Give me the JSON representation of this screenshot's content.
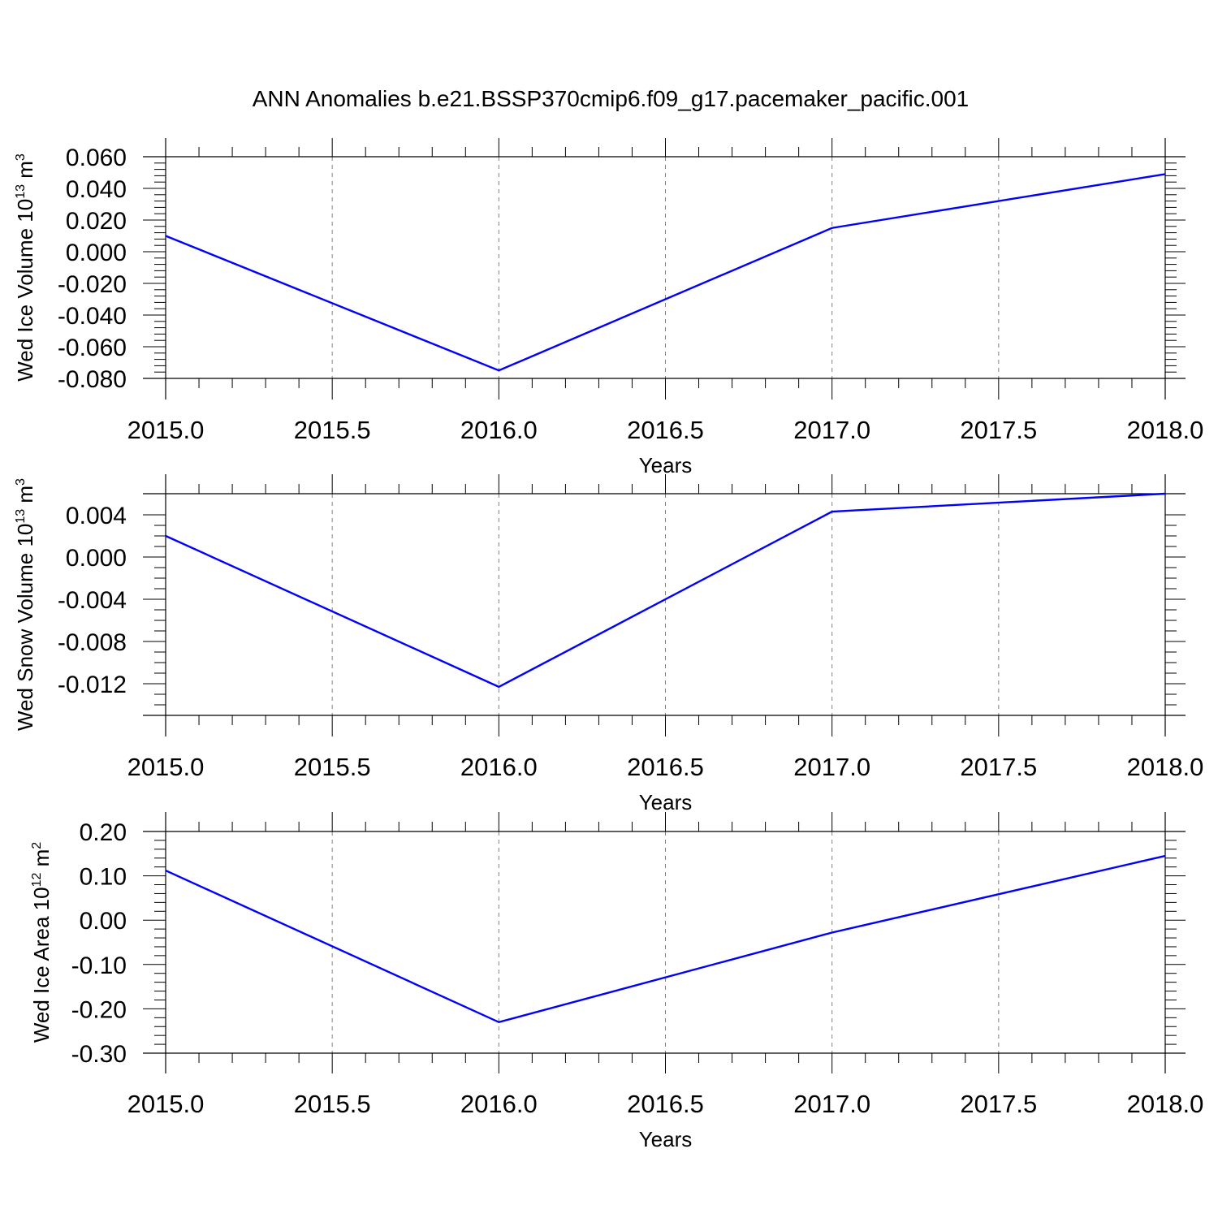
{
  "figure_title": "ANN Anomalies b.e21.BSSP370cmip6.f09_g17.pacemaker_pacific.001",
  "colors": {
    "series": "#0000ff",
    "grid": "#808080",
    "axes": "#000000"
  },
  "chart_data": [
    {
      "type": "line",
      "title": "ANN Anomalies b.e21.BSSP370cmip6.f09_g17.pacemaker_pacific.001",
      "xlabel": "Years",
      "ylabel": {
        "text": "Wed Ice Volume 10",
        "exp": "13",
        "unit": " m",
        "unit_exp": "3"
      },
      "xlim": [
        2015.0,
        2018.0
      ],
      "ylim": [
        -0.08,
        0.06
      ],
      "x_ticks": [
        "2015.0",
        "2015.5",
        "2016.0",
        "2016.5",
        "2017.0",
        "2017.5",
        "2018.0"
      ],
      "y_ticks": [
        "-0.080",
        "-0.060",
        "-0.040",
        "-0.020",
        "0.000",
        "0.020",
        "0.040",
        "0.060"
      ],
      "grid": "vertical dashed",
      "series": [
        {
          "x": [
            2015,
            2016,
            2017,
            2018
          ],
          "values": [
            0.01,
            -0.075,
            0.015,
            0.049
          ]
        }
      ]
    },
    {
      "type": "line",
      "xlabel": "Years",
      "ylabel": {
        "text": "Wed Snow Volume 10",
        "exp": "13",
        "unit": " m",
        "unit_exp": "3"
      },
      "xlim": [
        2015.0,
        2018.0
      ],
      "ylim": [
        -0.015,
        0.006
      ],
      "x_ticks": [
        "2015.0",
        "2015.5",
        "2016.0",
        "2016.5",
        "2017.0",
        "2017.5",
        "2018.0"
      ],
      "y_ticks": [
        "-0.012",
        "-0.008",
        "-0.004",
        "0.000",
        "0.004"
      ],
      "grid": "vertical dashed",
      "series": [
        {
          "x": [
            2015,
            2016,
            2017,
            2018
          ],
          "values": [
            0.002,
            -0.0123,
            0.0043,
            0.006
          ]
        }
      ]
    },
    {
      "type": "line",
      "xlabel": "Years",
      "ylabel": {
        "text": "Wed Ice Area 10",
        "exp": "12",
        "unit": " m",
        "unit_exp": "2"
      },
      "xlim": [
        2015.0,
        2018.0
      ],
      "ylim": [
        -0.3,
        0.2
      ],
      "x_ticks": [
        "2015.0",
        "2015.5",
        "2016.0",
        "2016.5",
        "2017.0",
        "2017.5",
        "2018.0"
      ],
      "y_ticks": [
        "-0.30",
        "-0.20",
        "-0.10",
        "0.00",
        "0.10",
        "0.20"
      ],
      "grid": "vertical dashed",
      "series": [
        {
          "x": [
            2015,
            2016,
            2017,
            2018
          ],
          "values": [
            0.112,
            -0.23,
            -0.028,
            0.145
          ]
        }
      ]
    }
  ]
}
